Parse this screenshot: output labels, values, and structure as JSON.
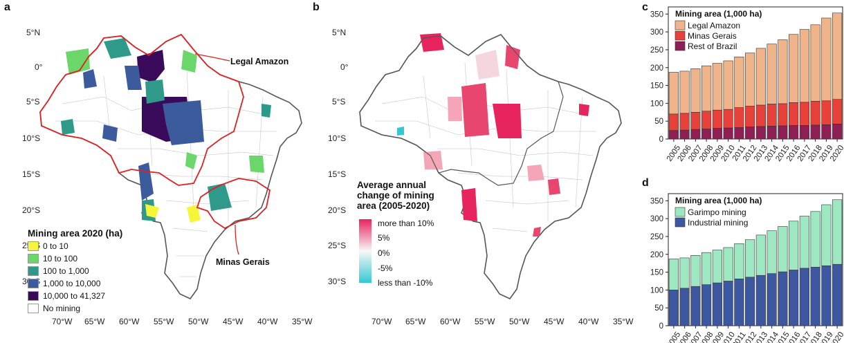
{
  "panels": {
    "a": "a",
    "b": "b",
    "c": "c",
    "d": "d"
  },
  "map_axes": {
    "lat_labels": [
      "5°N",
      "0°",
      "5°S",
      "10°S",
      "15°S",
      "20°S",
      "25°S",
      "30°S"
    ],
    "lon_labels": [
      "70°W",
      "65°W",
      "60°W",
      "55°W",
      "50°W",
      "45°W",
      "40°W",
      "35°W"
    ]
  },
  "map_a": {
    "annotations": {
      "legal_amazon": "Legal Amazon",
      "minas_gerais": "Minas Gerais"
    },
    "legend": {
      "title": "Mining area 2020 (ha)",
      "items": [
        {
          "label": "0 to 10",
          "color": "#f5f53a"
        },
        {
          "label": "10 to 100",
          "color": "#6bd66a"
        },
        {
          "label": "100 to 1,000",
          "color": "#2f9a8a"
        },
        {
          "label": "1,000 to 10,000",
          "color": "#3b5b9c"
        },
        {
          "label": "10,000 to 41,327",
          "color": "#3b0b5b"
        },
        {
          "label": "No mining",
          "color": "#ffffff"
        }
      ]
    }
  },
  "map_b": {
    "legend": {
      "title_lines": [
        "Average annual",
        "change of mining",
        "area (2005-2020)"
      ],
      "ticks": [
        "more than 10%",
        "5%",
        "0%",
        "-5%",
        "less than -10%"
      ]
    }
  },
  "chart_data": [
    {
      "type": "bar",
      "stacked": true,
      "panel": "c",
      "legend_title": "Mining area (1,000 ha)",
      "categories": [
        "2005",
        "2006",
        "2007",
        "2008",
        "2009",
        "2010",
        "2011",
        "2012",
        "2013",
        "2014",
        "2015",
        "2016",
        "2017",
        "2018",
        "2019",
        "2020"
      ],
      "series": [
        {
          "name": "Rest of Brazil",
          "color": "#8e1f55",
          "values": [
            24,
            25,
            27,
            28,
            30,
            31,
            32,
            34,
            35,
            36,
            37,
            38,
            38,
            39,
            40,
            42
          ]
        },
        {
          "name": "Minas Gerais",
          "color": "#e8413a",
          "values": [
            46,
            47,
            48,
            50,
            51,
            52,
            56,
            58,
            60,
            62,
            62,
            64,
            65,
            67,
            67,
            69
          ]
        },
        {
          "name": "Legal Amazon",
          "color": "#f0b48a",
          "values": [
            117,
            118,
            122,
            127,
            131,
            136,
            142,
            149,
            159,
            168,
            179,
            191,
            204,
            214,
            232,
            242
          ]
        }
      ],
      "legend_order": [
        "Legal Amazon",
        "Minas Gerais",
        "Rest of Brazil"
      ],
      "ylim": [
        0,
        370
      ],
      "yticks": [
        0,
        50,
        100,
        150,
        200,
        250,
        300,
        350
      ]
    },
    {
      "type": "bar",
      "stacked": true,
      "panel": "d",
      "legend_title": "Mining area (1,000 ha)",
      "categories": [
        "2005",
        "2006",
        "2007",
        "2008",
        "2009",
        "2010",
        "2011",
        "2012",
        "2013",
        "2014",
        "2015",
        "2016",
        "2017",
        "2018",
        "2019",
        "2020"
      ],
      "series": [
        {
          "name": "Industrial mining",
          "color": "#3d58a0",
          "values": [
            100,
            105,
            110,
            115,
            120,
            125,
            131,
            136,
            141,
            146,
            151,
            156,
            161,
            164,
            168,
            172
          ]
        },
        {
          "name": "Garimpo mining",
          "color": "#9de8c0",
          "values": [
            87,
            85,
            87,
            90,
            92,
            94,
            99,
            105,
            113,
            120,
            127,
            137,
            146,
            156,
            171,
            181
          ]
        }
      ],
      "legend_order": [
        "Garimpo mining",
        "Industrial mining"
      ],
      "ylim": [
        0,
        370
      ],
      "yticks": [
        0,
        50,
        100,
        150,
        200,
        250,
        300,
        350
      ]
    }
  ]
}
